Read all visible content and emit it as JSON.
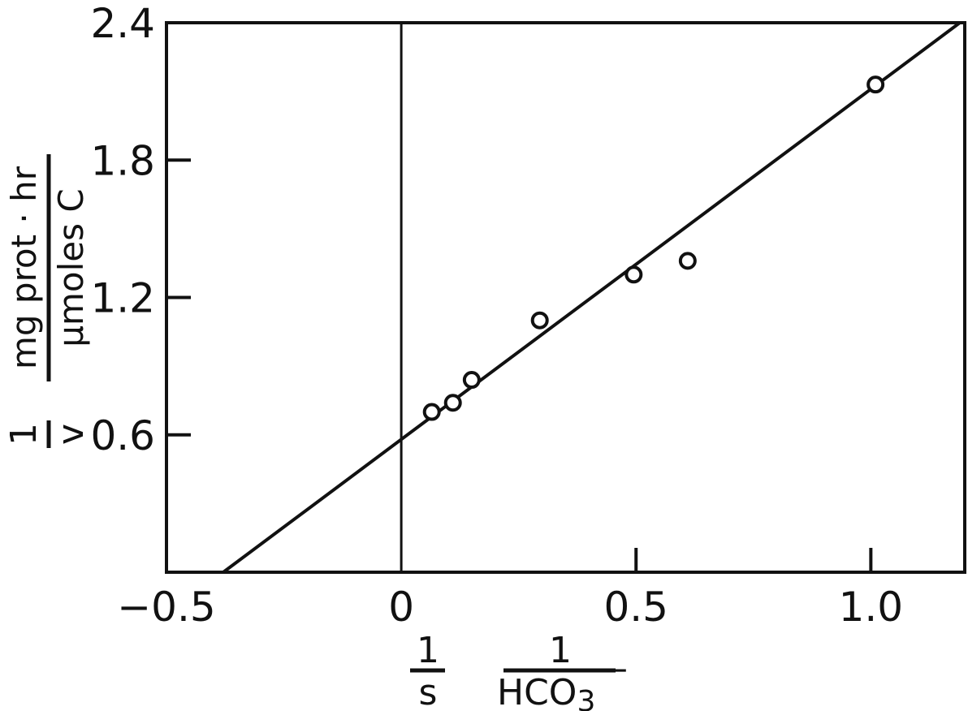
{
  "chart_data": {
    "type": "scatter",
    "title": "",
    "xlim": [
      -0.5,
      1.2
    ],
    "ylim": [
      0,
      2.4
    ],
    "x_ticks": [
      -0.5,
      0,
      0.5,
      1.0
    ],
    "x_tick_labels": [
      "−0.5",
      "0",
      "0.5",
      "1.0"
    ],
    "y_ticks": [
      0.6,
      1.2,
      1.8,
      2.4
    ],
    "y_tick_labels": [
      "0.6",
      "1.2",
      "1.8",
      "2.4"
    ],
    "grid": false,
    "x_zero_line": true,
    "xlabel": {
      "left_numerator": "1",
      "left_denominator": "s",
      "right_numerator": "1",
      "right_denominator": "HCO",
      "right_subscript": "3",
      "right_superscript": "−"
    },
    "ylabel": {
      "left_numerator": "1",
      "left_denominator": "v",
      "right_numerator": "mg prot · hr",
      "right_denominator": "μmoles C"
    },
    "points": [
      {
        "x": 0.065,
        "y": 0.7
      },
      {
        "x": 0.11,
        "y": 0.74
      },
      {
        "x": 0.15,
        "y": 0.84
      },
      {
        "x": 0.295,
        "y": 1.1
      },
      {
        "x": 0.495,
        "y": 1.3
      },
      {
        "x": 0.61,
        "y": 1.36
      },
      {
        "x": 1.01,
        "y": 2.13
      }
    ],
    "fit_line": {
      "slope": 1.53,
      "intercept": 0.58
    }
  }
}
